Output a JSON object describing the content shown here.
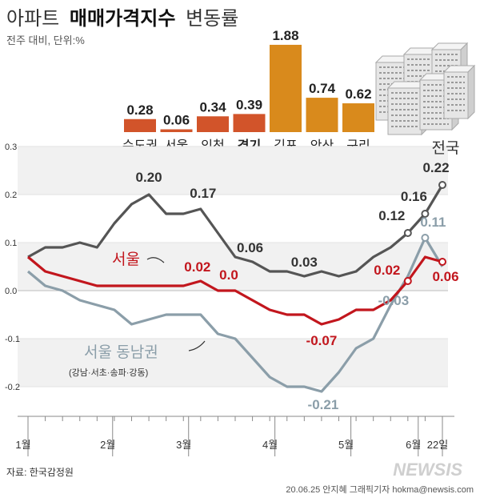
{
  "title": {
    "prefix": "아파트",
    "main": "매매가격지수",
    "suffix": "변동률"
  },
  "subtitle": "전주 대비, 단위:%",
  "colors": {
    "bar_orange_red": "#d2542a",
    "bar_gold": "#d98a1c",
    "nationwide": "#555555",
    "seoul": "#c2161d",
    "seoul_southeast": "#8b9ea9"
  },
  "chart_data": [
    {
      "type": "bar",
      "categories": [
        "수도권",
        "서울",
        "인천",
        "경기",
        "김포",
        "안산",
        "구리"
      ],
      "values": [
        0.28,
        0.06,
        0.34,
        0.39,
        1.88,
        0.74,
        0.62
      ],
      "value_labels": [
        "0.28",
        "0.06",
        "0.34",
        "0.39",
        "1.88",
        "0.74",
        "0.62"
      ],
      "bold_categories": [
        "경기"
      ],
      "unit": "%"
    },
    {
      "type": "line",
      "ylim": [
        -0.25,
        0.3
      ],
      "yticks": [
        0.3,
        0.2,
        0.1,
        0.0,
        -0.1,
        -0.2
      ],
      "ytick_labels": [
        "0.3",
        "0.2",
        "0.1",
        "0.0",
        "-0.1",
        "-0.2"
      ],
      "xlim": [
        0,
        24.5
      ],
      "month_ticks": [
        {
          "label": "1월",
          "x": 0
        },
        {
          "label": "2월",
          "x": 4.9
        },
        {
          "label": "3월",
          "x": 9.3
        },
        {
          "label": "4월",
          "x": 14.3
        },
        {
          "label": "5월",
          "x": 18.7
        },
        {
          "label": "6월",
          "x": 22.6
        },
        {
          "label": "22일",
          "x": 26
        }
      ],
      "x": [
        0,
        1,
        2,
        3,
        4,
        5,
        6,
        7,
        8,
        9,
        10,
        11,
        12,
        13,
        14,
        15,
        16,
        17,
        18,
        19,
        20,
        21,
        22,
        23,
        24
      ],
      "series": [
        {
          "name": "전국",
          "values": [
            0.07,
            0.09,
            0.09,
            0.1,
            0.09,
            0.14,
            0.18,
            0.2,
            0.16,
            0.16,
            0.17,
            0.12,
            0.07,
            0.06,
            0.04,
            0.04,
            0.03,
            0.04,
            0.03,
            0.04,
            0.07,
            0.09,
            0.12,
            0.16,
            0.22
          ]
        },
        {
          "name": "서울",
          "values": [
            0.07,
            0.04,
            0.03,
            0.02,
            0.01,
            0.01,
            0.01,
            0.01,
            0.01,
            0.01,
            0.02,
            0.0,
            0.0,
            -0.02,
            -0.04,
            -0.05,
            -0.05,
            -0.07,
            -0.06,
            -0.04,
            -0.04,
            -0.02,
            0.02,
            0.07,
            0.06
          ]
        },
        {
          "name": "서울 동남권",
          "values": [
            0.04,
            0.01,
            0.0,
            -0.02,
            -0.03,
            -0.04,
            -0.07,
            -0.06,
            -0.05,
            -0.05,
            -0.05,
            -0.09,
            -0.1,
            -0.14,
            -0.18,
            -0.2,
            -0.2,
            -0.21,
            -0.17,
            -0.12,
            -0.1,
            -0.03,
            0.03,
            0.11,
            0.05
          ]
        }
      ],
      "labels": {
        "nationwide_name": "전국",
        "seoul_name": "서울",
        "southeast_name": "서울 동남권",
        "southeast_sub": "(강남·서초·송파·강동)",
        "nationwide_points": [
          "0.20",
          "0.17",
          "0.06",
          "0.03",
          "0.12",
          "0.16",
          "0.22"
        ],
        "seoul_points": [
          "0.02",
          "0.0",
          "-0.07",
          "0.02",
          "0.06"
        ],
        "southeast_points": [
          "-0.21",
          "-0.03",
          "0.11"
        ]
      }
    }
  ],
  "footer": {
    "source": "자료: 한국감정원",
    "credit": "20.06.25 안지혜 그래픽기자 hokma@newsis.com",
    "watermark": "NEWSIS"
  }
}
